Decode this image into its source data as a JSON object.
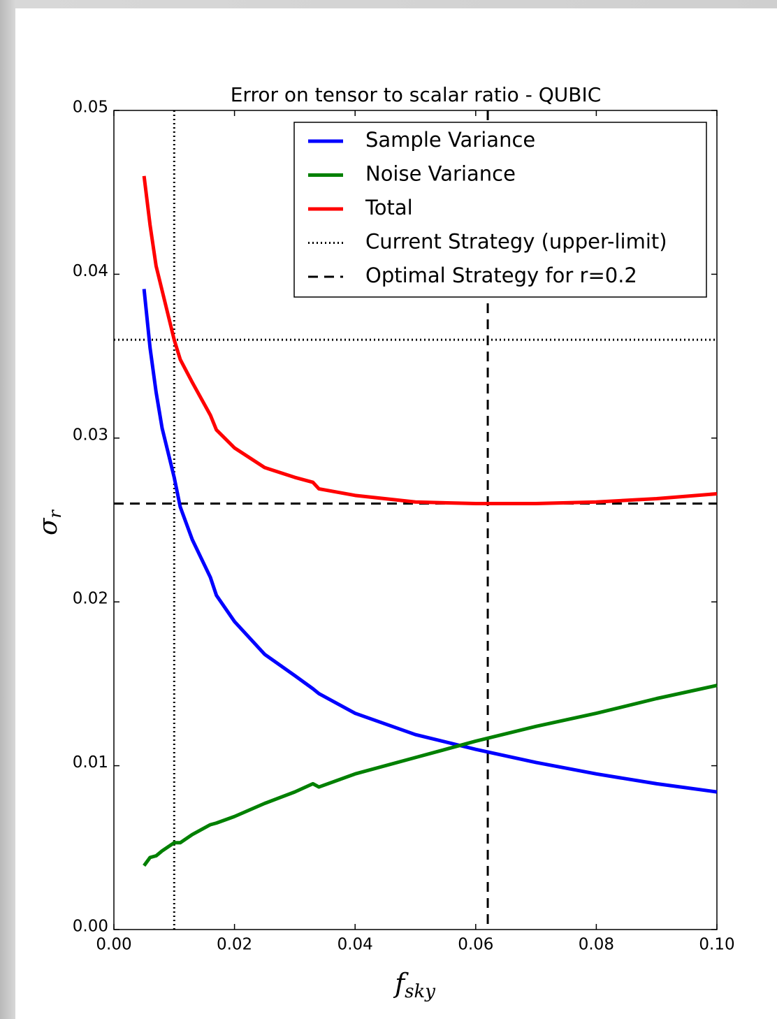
{
  "chart_data": {
    "type": "line",
    "title": "Error on tensor to scalar ratio - QUBIC",
    "xlabel": {
      "main": "f",
      "sub": "sky"
    },
    "ylabel": {
      "main": "σ",
      "sub": "r"
    },
    "x": [
      0.005,
      0.006,
      0.007,
      0.008,
      0.01,
      0.011,
      0.013,
      0.016,
      0.017,
      0.02,
      0.025,
      0.03,
      0.033,
      0.034,
      0.04,
      0.05,
      0.06,
      0.07,
      0.08,
      0.09,
      0.1
    ],
    "series": [
      {
        "name": "Sample Variance",
        "color": "#0000ff",
        "values": [
          0.0391,
          0.0355,
          0.0328,
          0.0306,
          0.0276,
          0.0258,
          0.0238,
          0.0215,
          0.0204,
          0.0188,
          0.0168,
          0.0155,
          0.0147,
          0.0144,
          0.0132,
          0.0119,
          0.011,
          0.0102,
          0.0095,
          0.0089,
          0.0084
        ]
      },
      {
        "name": "Noise Variance",
        "color": "#008000",
        "values": [
          0.0039,
          0.0044,
          0.0045,
          0.0048,
          0.0053,
          0.0053,
          0.0058,
          0.0064,
          0.0065,
          0.0069,
          0.0077,
          0.0084,
          0.0089,
          0.0087,
          0.0095,
          0.0105,
          0.0115,
          0.0124,
          0.0132,
          0.0141,
          0.0149
        ]
      },
      {
        "name": "Total",
        "color": "#ff0000",
        "values": [
          0.046,
          0.043,
          0.0405,
          0.039,
          0.036,
          0.0348,
          0.0334,
          0.0314,
          0.0305,
          0.0294,
          0.0282,
          0.0276,
          0.0273,
          0.0269,
          0.0265,
          0.0261,
          0.026,
          0.026,
          0.0261,
          0.0263,
          0.0266
        ]
      }
    ],
    "reference_lines": [
      {
        "name": "Current Strategy (upper-limit)",
        "color": "#000000",
        "dash": "dotted",
        "vline": 0.01,
        "hline": 0.036
      },
      {
        "name": "Optimal Strategy for r=0.2",
        "color": "#000000",
        "dash": "dashed",
        "vline": 0.062,
        "hline": 0.026
      }
    ],
    "xlim": [
      0,
      0.1
    ],
    "ylim": [
      0,
      0.05
    ],
    "xticks": [
      {
        "value": 0,
        "label": "0.00"
      },
      {
        "value": 0.02,
        "label": "0.02"
      },
      {
        "value": 0.04,
        "label": "0.04"
      },
      {
        "value": 0.06,
        "label": "0.06"
      },
      {
        "value": 0.08,
        "label": "0.08"
      },
      {
        "value": 0.1,
        "label": "0.10"
      }
    ],
    "yticks": [
      {
        "value": 0,
        "label": "0.00"
      },
      {
        "value": 0.01,
        "label": "0.01"
      },
      {
        "value": 0.02,
        "label": "0.02"
      },
      {
        "value": 0.03,
        "label": "0.03"
      },
      {
        "value": 0.04,
        "label": "0.04"
      },
      {
        "value": 0.05,
        "label": "0.05"
      }
    ],
    "legend": "upper right"
  }
}
